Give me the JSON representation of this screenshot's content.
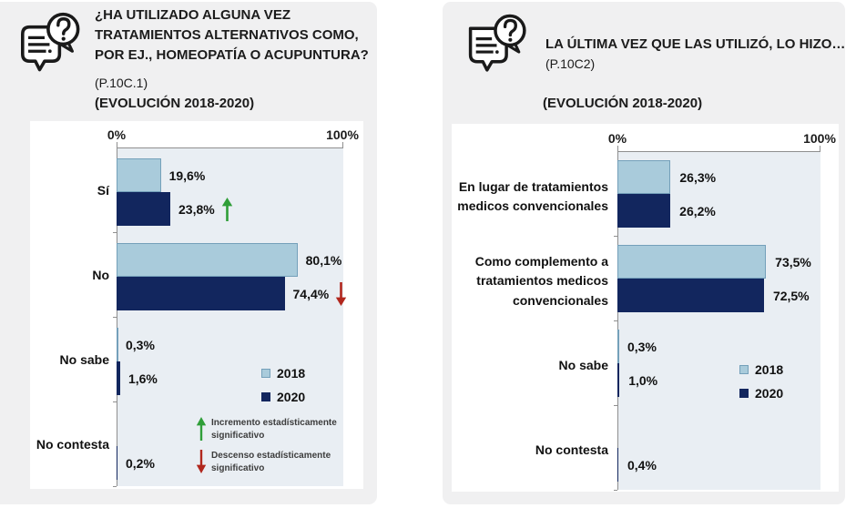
{
  "page": {
    "background_color": "#ffffff",
    "card_color": "#f0f0f1",
    "plot_background_color": "#e9eef3",
    "series_colors": {
      "2018": "#a9cbdb",
      "2020": "#12265e"
    },
    "increase_arrow_color": "#2f9e38",
    "decrease_arrow_color": "#b1271d"
  },
  "chart_data": [
    {
      "type": "bar",
      "orientation": "horizontal",
      "icon": "chat-question-icon",
      "title_lines": [
        "¿HA UTILIZADO ALGUNA VEZ",
        "TRATAMIENTOS ALTERNATIVOS COMO,",
        "POR EJ., HOMEOPATÍA O ACUPUNTURA?"
      ],
      "title": "¿HA UTILIZADO ALGUNA VEZ TRATAMIENTOS ALTERNATIVOS COMO, POR EJ., HOMEOPATÍA O ACUPUNTURA?",
      "subtitle": "(P.10C.1)",
      "evolution": "(EVOLUCIÓN 2018-2020)",
      "xlim": [
        0,
        100
      ],
      "x_tick_labels": [
        "0%",
        "100%"
      ],
      "categories": [
        "Sí",
        "No",
        "No sabe",
        "No contesta"
      ],
      "category_label_lines": [
        [
          "Sí"
        ],
        [
          "No"
        ],
        [
          "No sabe"
        ],
        [
          "No contesta"
        ]
      ],
      "series": [
        {
          "name": "2018",
          "values": [
            19.6,
            80.1,
            0.3,
            null
          ],
          "labels": [
            "19,6%",
            "80,1%",
            "0,3%",
            null
          ]
        },
        {
          "name": "2020",
          "values": [
            23.8,
            74.4,
            1.6,
            0.2
          ],
          "labels": [
            "23,8%",
            "74,4%",
            "1,6%",
            "0,2%"
          ]
        }
      ],
      "annotations": [
        {
          "category": "Sí",
          "series": "2020",
          "arrow": "up"
        },
        {
          "category": "No",
          "series": "2020",
          "arrow": "down"
        }
      ],
      "legend": [
        "2018",
        "2020"
      ],
      "legend_position": "inside-right",
      "notes": [
        {
          "arrow": "up",
          "text": "Incremento estadísticamente significativo"
        },
        {
          "arrow": "down",
          "text": "Descenso estadísticamente significativo"
        }
      ]
    },
    {
      "type": "bar",
      "orientation": "horizontal",
      "icon": "chat-question-icon",
      "title_lines": [
        "LA ÚLTIMA VEZ QUE LAS UTILIZÓ, LO HIZO…"
      ],
      "title": "LA ÚLTIMA VEZ QUE LAS UTILIZÓ, LO HIZO…",
      "subtitle": "(P.10C2)",
      "evolution": "(EVOLUCIÓN 2018-2020)",
      "xlim": [
        0,
        100
      ],
      "x_tick_labels": [
        "0%",
        "100%"
      ],
      "categories": [
        "En lugar de tratamientos medicos convencionales",
        "Como complemento a tratamientos medicos convencionales",
        "No sabe",
        "No contesta"
      ],
      "category_label_lines": [
        [
          "En lugar de tratamientos",
          "medicos convencionales"
        ],
        [
          "Como complemento a",
          "tratamientos medicos",
          "convencionales"
        ],
        [
          "No sabe"
        ],
        [
          "No contesta"
        ]
      ],
      "series": [
        {
          "name": "2018",
          "values": [
            26.3,
            73.5,
            0.3,
            null
          ],
          "labels": [
            "26,3%",
            "73,5%",
            "0,3%",
            null
          ]
        },
        {
          "name": "2020",
          "values": [
            26.2,
            72.5,
            1.0,
            0.4
          ],
          "labels": [
            "26,2%",
            "72,5%",
            "1,0%",
            "0,4%"
          ]
        }
      ],
      "annotations": [],
      "legend": [
        "2018",
        "2020"
      ],
      "legend_position": "inside-right",
      "notes": []
    }
  ]
}
